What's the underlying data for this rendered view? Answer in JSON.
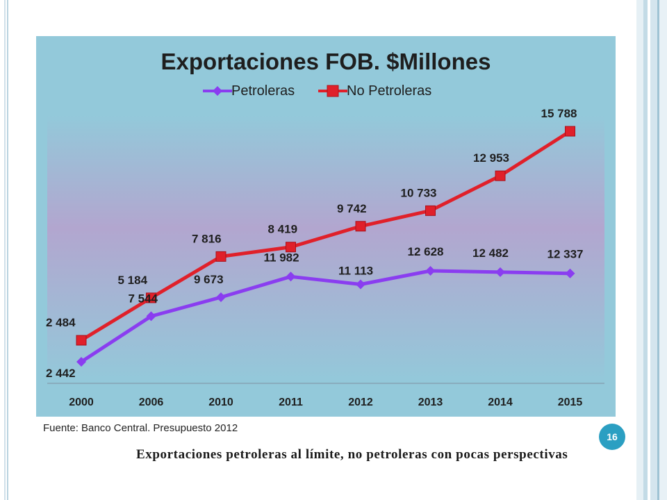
{
  "slide": {
    "source_note": "Fuente: Banco Central. Presupuesto 2012",
    "page_number": "16",
    "caption": "Exportaciones petroleras al límite, no petroleras con pocas perspectivas"
  },
  "colors": {
    "background": "#93c9da",
    "plot_gradient_top": "#93c9da",
    "plot_gradient_mid": "#b3a7ce",
    "petroleras": "#8a3df0",
    "no_petroleras": "#e0202a",
    "page_badge": "#2b9fc2"
  },
  "chart_data": {
    "type": "line",
    "title": "Exportaciones FOB. $Millones",
    "xlabel": "",
    "ylabel": "",
    "categories": [
      "2000",
      "2006",
      "2010",
      "2011",
      "2012",
      "2013",
      "2014",
      "2015"
    ],
    "series": [
      {
        "name": "Petroleras",
        "values": [
          2442,
          7544,
          9673,
          11982,
          11113,
          12628,
          12482,
          12337
        ],
        "labels": [
          "2 442",
          "7 544",
          "9 673",
          "11 982",
          "11 113",
          "12 628",
          "12 482",
          "12 337"
        ],
        "marker": "diamond"
      },
      {
        "name": "No Petroleras",
        "values": [
          2484,
          5184,
          7816,
          8419,
          9742,
          10733,
          12953,
          15788
        ],
        "labels": [
          "2 484",
          "5 184",
          "7 816",
          "8 419",
          "9 742",
          "10 733",
          "12 953",
          "15 788"
        ],
        "marker": "square"
      }
    ],
    "grid": false,
    "legend_position": "top"
  }
}
